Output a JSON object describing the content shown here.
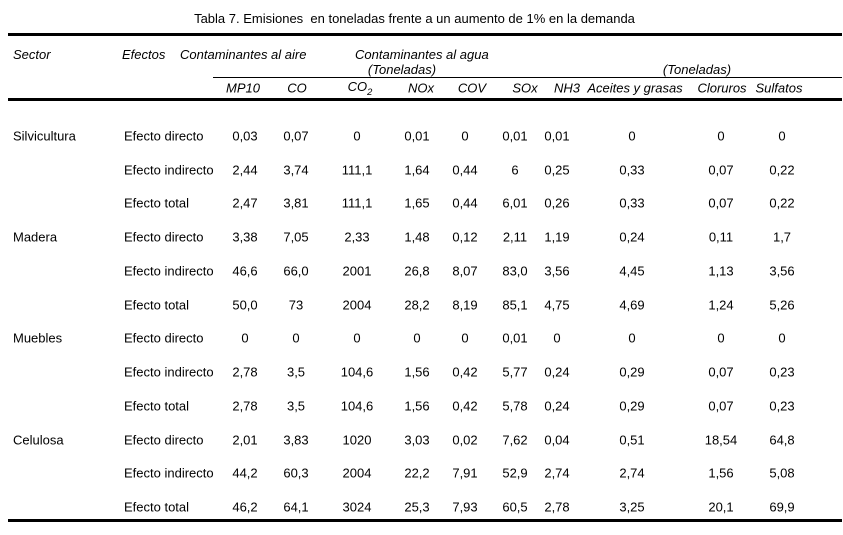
{
  "title": "Tabla 7. Emisiones  en toneladas frente a un aumento de 1% en la demanda",
  "table": {
    "header": {
      "sector": "Sector",
      "efectos": "Efectos",
      "air_group": "Contaminantes al aire",
      "water_group": "Contaminantes al agua",
      "toneladas_left": "(Toneladas)",
      "toneladas_right": "(Toneladas)"
    },
    "columns": [
      {
        "label": "MP10"
      },
      {
        "label": "CO"
      },
      {
        "label": "CO",
        "sub": "2"
      },
      {
        "label": "NOx"
      },
      {
        "label": "COV"
      },
      {
        "label": "SOx"
      },
      {
        "label": "NH3"
      },
      {
        "label": "Aceites y grasas"
      },
      {
        "label": "Cloruros"
      },
      {
        "label": "Sulfatos"
      }
    ],
    "rows": [
      {
        "sector": "Silvicultura",
        "efecto": "Efecto directo",
        "values": [
          "0,03",
          "0,07",
          "0",
          "0,01",
          "0",
          "0,01",
          "0,01",
          "0",
          "0",
          "0"
        ]
      },
      {
        "sector": "",
        "efecto": "Efecto indirecto",
        "values": [
          "2,44",
          "3,74",
          "111,1",
          "1,64",
          "0,44",
          "6",
          "0,25",
          "0,33",
          "0,07",
          "0,22"
        ]
      },
      {
        "sector": "",
        "efecto": "Efecto total",
        "values": [
          "2,47",
          "3,81",
          "111,1",
          "1,65",
          "0,44",
          "6,01",
          "0,26",
          "0,33",
          "0,07",
          "0,22"
        ]
      },
      {
        "sector": "Madera",
        "efecto": "Efecto directo",
        "values": [
          "3,38",
          "7,05",
          "2,33",
          "1,48",
          "0,12",
          "2,11",
          "1,19",
          "0,24",
          "0,11",
          "1,7"
        ]
      },
      {
        "sector": "",
        "efecto": "Efecto indirecto",
        "values": [
          "46,6",
          "66,0",
          "2001",
          "26,8",
          "8,07",
          "83,0",
          "3,56",
          "4,45",
          "1,13",
          "3,56"
        ]
      },
      {
        "sector": "",
        "efecto": "Efecto total",
        "values": [
          "50,0",
          "73",
          "2004",
          "28,2",
          "8,19",
          "85,1",
          "4,75",
          "4,69",
          "1,24",
          "5,26"
        ]
      },
      {
        "sector": "Muebles",
        "efecto": "Efecto directo",
        "values": [
          "0",
          "0",
          "0",
          "0",
          "0",
          "0,01",
          "0",
          "0",
          "0",
          "0"
        ]
      },
      {
        "sector": "",
        "efecto": "Efecto indirecto",
        "values": [
          "2,78",
          "3,5",
          "104,6",
          "1,56",
          "0,42",
          "5,77",
          "0,24",
          "0,29",
          "0,07",
          "0,23"
        ]
      },
      {
        "sector": "",
        "efecto": "Efecto total",
        "values": [
          "2,78",
          "3,5",
          "104,6",
          "1,56",
          "0,42",
          "5,78",
          "0,24",
          "0,29",
          "0,07",
          "0,23"
        ]
      },
      {
        "sector": "Celulosa",
        "efecto": "Efecto directo",
        "values": [
          "2,01",
          "3,83",
          "1020",
          "3,03",
          "0,02",
          "7,62",
          "0,04",
          "0,51",
          "18,54",
          "64,8"
        ]
      },
      {
        "sector": "",
        "efecto": "Efecto indirecto",
        "values": [
          "44,2",
          "60,3",
          "2004",
          "22,2",
          "7,91",
          "52,9",
          "2,74",
          "2,74",
          "1,56",
          "5,08"
        ]
      },
      {
        "sector": "",
        "efecto": "Efecto total",
        "values": [
          "46,2",
          "64,1",
          "3024",
          "25,3",
          "7,93",
          "60,5",
          "2,78",
          "3,25",
          "20,1",
          "69,9"
        ]
      }
    ]
  },
  "colors": {
    "text": "#000000",
    "background": "#ffffff",
    "rule": "#000000"
  }
}
